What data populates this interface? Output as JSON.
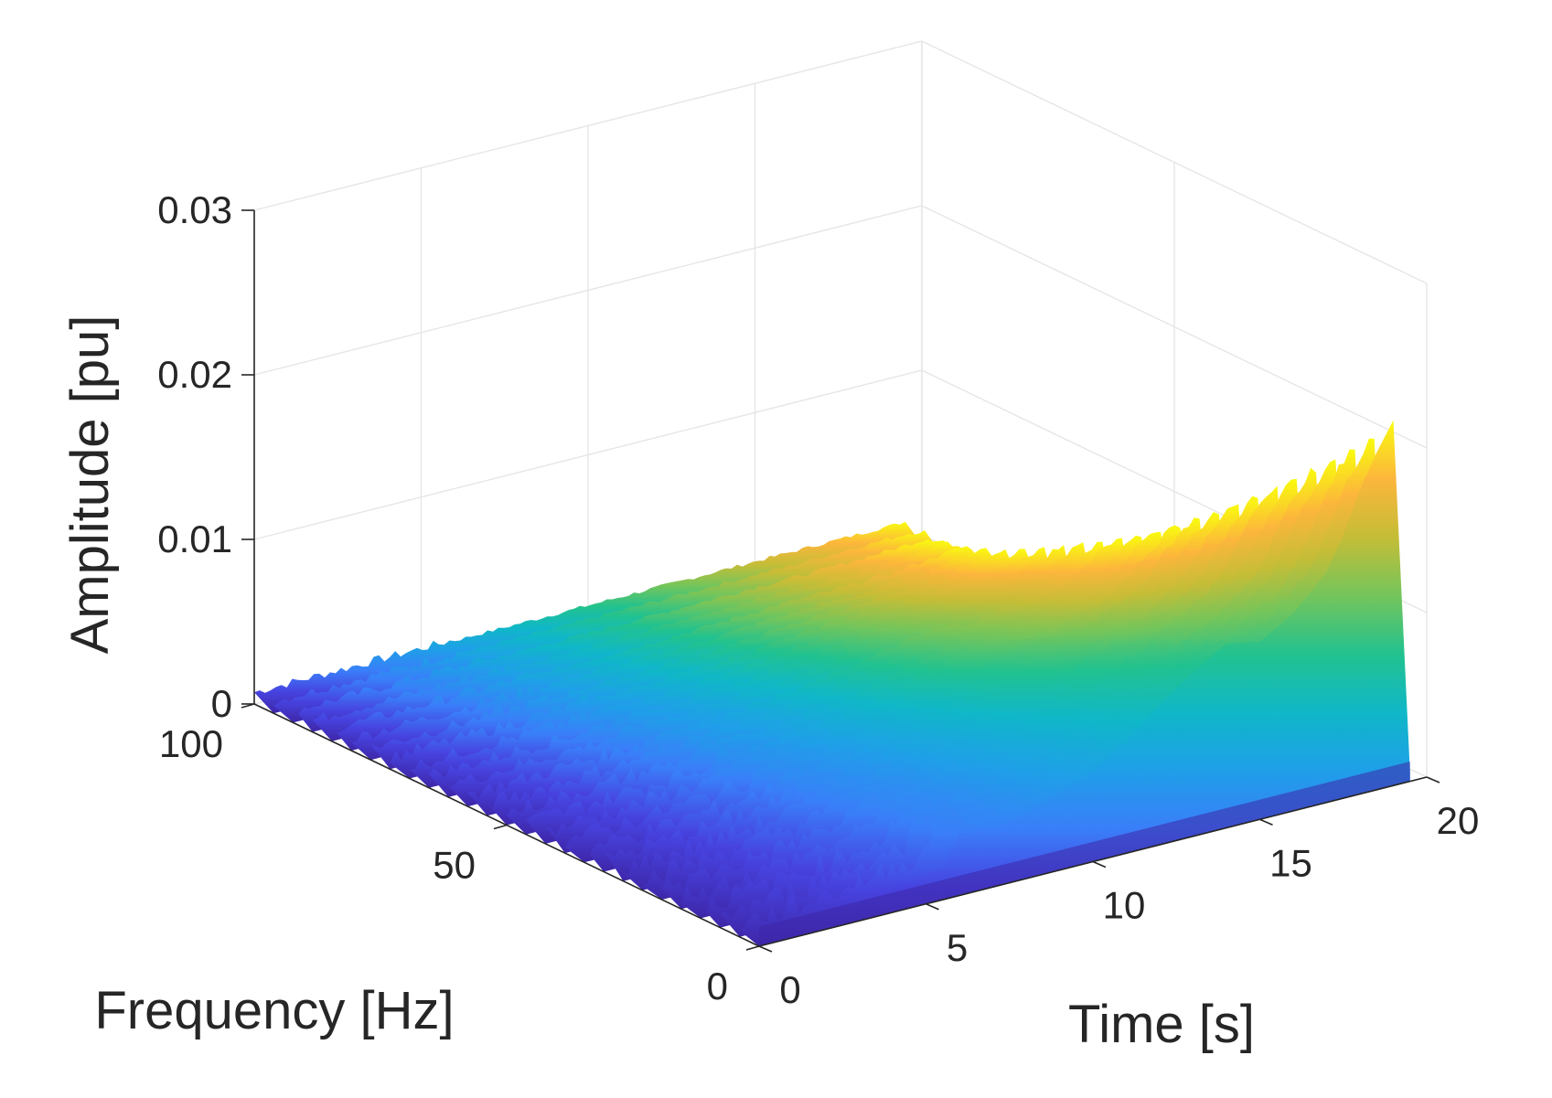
{
  "chart_data": {
    "type": "surface",
    "title": "",
    "xlabel": "Time [s]",
    "ylabel": "Frequency [Hz]",
    "zlabel": "Amplitude [pu]",
    "xlim": [
      0,
      20
    ],
    "ylim": [
      0,
      100
    ],
    "zlim": [
      0,
      0.03
    ],
    "xticks": [
      "0",
      "5",
      "10",
      "15",
      "20"
    ],
    "yticks": [
      "0",
      "50",
      "100"
    ],
    "zticks": [
      "0",
      "0.01",
      "0.02",
      "0.03"
    ],
    "grid": true,
    "colormap": "parula",
    "colormap_stops": [
      "#3e26a8",
      "#4743e0",
      "#3a7ef9",
      "#1f9fe8",
      "#10b7c8",
      "#22c28f",
      "#74c55b",
      "#c5bd37",
      "#fcb63c",
      "#f9fb0e"
    ],
    "series": [
      {
        "name": "amplitude at 0 Hz (front edge)",
        "time_s": [
          0,
          2,
          4,
          5.5,
          6,
          7,
          8,
          9,
          10,
          11,
          12,
          13,
          14,
          15,
          16,
          17,
          17.5,
          18,
          18.5,
          19,
          19.5
        ],
        "amplitude_pu": [
          0.0005,
          0.0008,
          0.0014,
          0.002,
          0.0038,
          0.0035,
          0.004,
          0.0048,
          0.0055,
          0.0068,
          0.0085,
          0.01,
          0.0112,
          0.0108,
          0.012,
          0.014,
          0.016,
          0.0185,
          0.0205,
          0.0222,
          0.0005
        ]
      },
      {
        "name": "amplitude at 100 Hz (back edge)",
        "time_s": [
          0,
          5,
          10,
          15,
          19.5
        ],
        "amplitude_pu": [
          0.0006,
          0.0007,
          0.0008,
          0.0009,
          0.001
        ]
      }
    ]
  }
}
